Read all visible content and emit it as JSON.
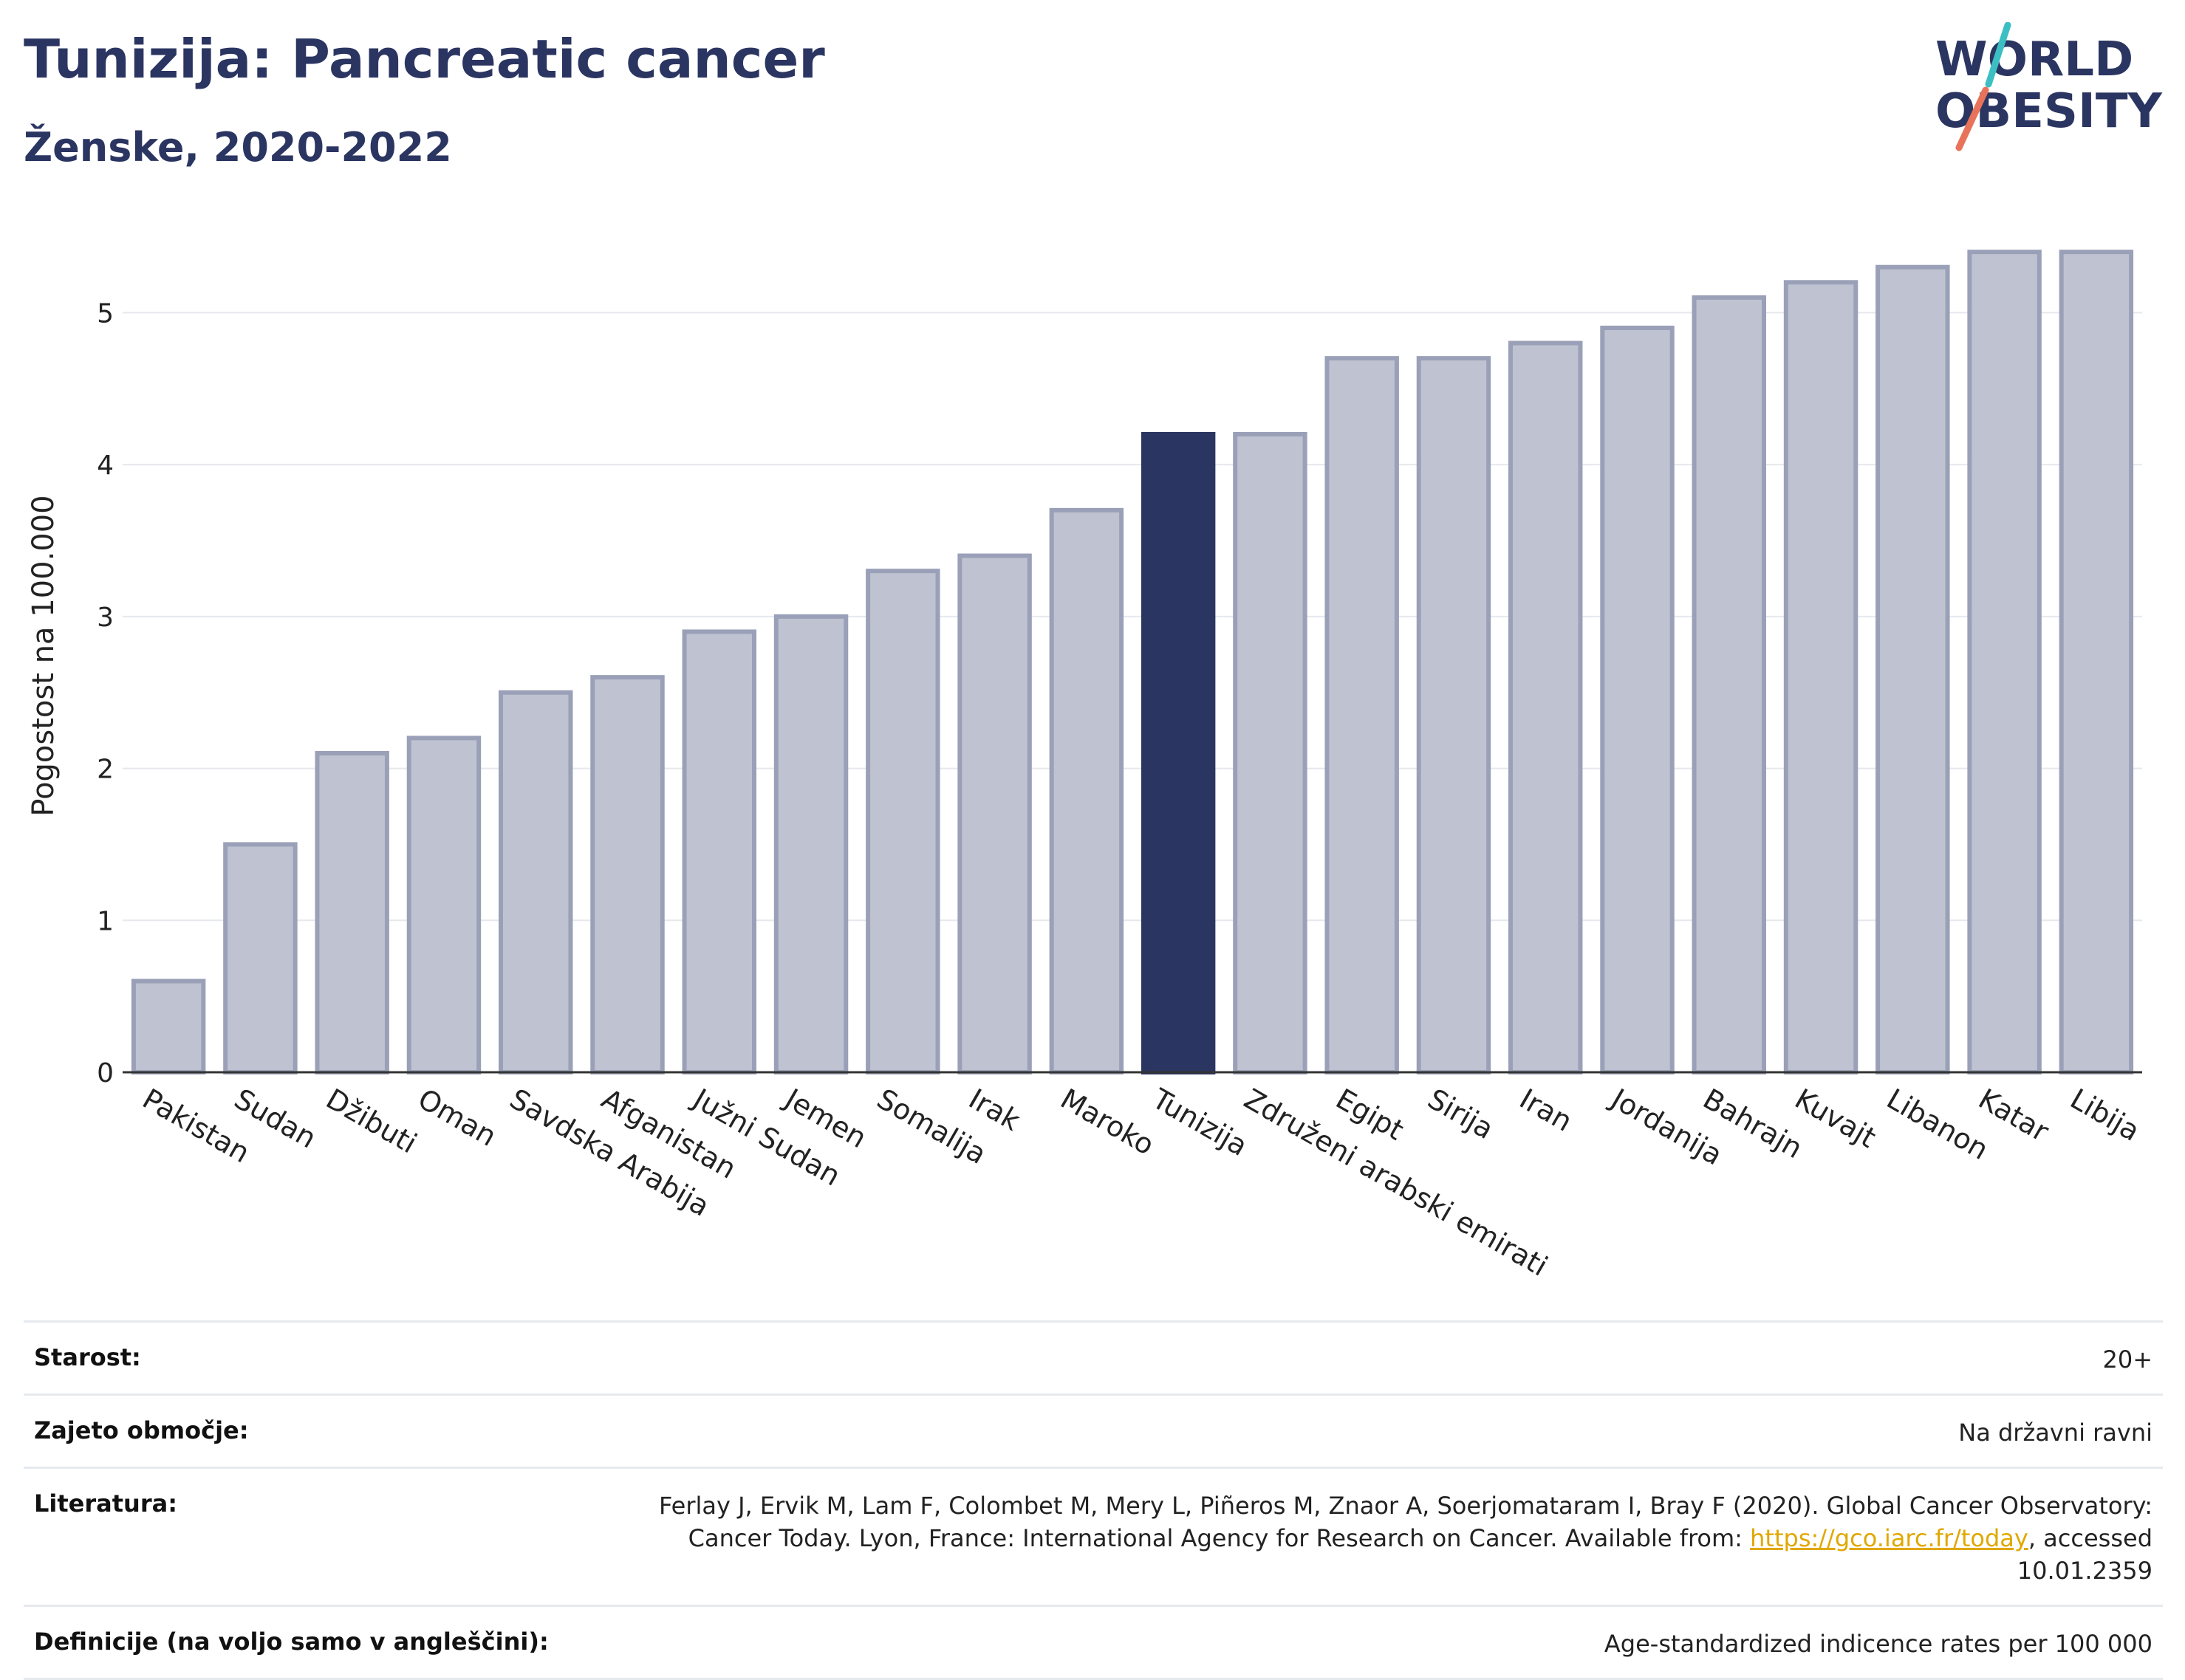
{
  "header": {
    "title": "Tunizija: Pancreatic cancer",
    "subtitle": "Ženske, 2020-2022"
  },
  "logo": {
    "line1": "WORLD",
    "line2": "OBESITY"
  },
  "chart_data": {
    "type": "bar",
    "ylabel": "Pogostost na 100.000",
    "ylim": [
      0,
      5.6
    ],
    "yticks": [
      0,
      1,
      2,
      3,
      4,
      5
    ],
    "categories": [
      "Pakistan",
      "Sudan",
      "Džibuti",
      "Oman",
      "Savdska Arabija",
      "Afganistan",
      "Južni Sudan",
      "Jemen",
      "Somalija",
      "Irak",
      "Maroko",
      "Tunizija",
      "Združeni arabski emirati",
      "Egipt",
      "Sirija",
      "Iran",
      "Jordanija",
      "Bahrajn",
      "Kuvajt",
      "Libanon",
      "Katar",
      "Libija"
    ],
    "values": [
      0.6,
      1.5,
      2.1,
      2.2,
      2.5,
      2.6,
      2.9,
      3.0,
      3.3,
      3.4,
      3.7,
      4.2,
      4.2,
      4.7,
      4.7,
      4.8,
      4.9,
      5.1,
      5.2,
      5.3,
      5.4,
      5.4
    ],
    "highlight": "Tunizija",
    "grid": true,
    "colors": {
      "highlight": "#2b3561",
      "bar_fill": "#bfc3d1",
      "bar_stroke": "#9aa0b7",
      "grid": "#e6e8ee"
    }
  },
  "info": [
    {
      "label": "Starost:",
      "value": "20+"
    },
    {
      "label": "Zajeto območje:",
      "value": "Na državni ravni"
    },
    {
      "label": "Literatura:",
      "value_pre": "Ferlay J, Ervik M, Lam F, Colombet M, Mery L, Piñeros M, Znaor A, Soerjomataram I, Bray F (2020). Global Cancer Observatory: Cancer Today. Lyon, France: International Agency for Research on Cancer. Available from: ",
      "link": "https://gco.iarc.fr/today",
      "value_post": ", accessed 10.01.2359"
    },
    {
      "label": "Definicije (na voljo samo v angleščini):",
      "value": "Age-standardized indicence rates per 100 000"
    }
  ]
}
